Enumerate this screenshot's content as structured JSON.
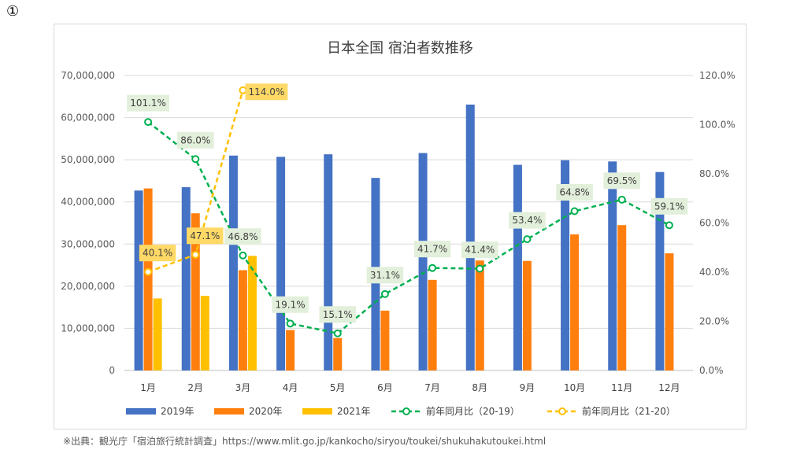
{
  "marker": "①",
  "source_note": "※出典：観光庁「宿泊旅行統計調査」https://www.mlit.go.jp/kankocho/siryou/toukei/shukuhakutoukei.html",
  "chart_data": {
    "type": "bar",
    "title": "日本全国 宿泊者数推移",
    "categories": [
      "1月",
      "2月",
      "3月",
      "4月",
      "5月",
      "6月",
      "7月",
      "8月",
      "9月",
      "10月",
      "11月",
      "12月"
    ],
    "y_left": {
      "ylim": [
        0,
        70000000
      ],
      "ticks": [
        0,
        10000000,
        20000000,
        30000000,
        40000000,
        50000000,
        60000000,
        70000000
      ],
      "tick_labels": [
        "0",
        "10,000,000",
        "20,000,000",
        "30,000,000",
        "40,000,000",
        "50,000,000",
        "60,000,000",
        "70,000,000"
      ]
    },
    "y_right": {
      "ylim": [
        0,
        120
      ],
      "ticks": [
        0,
        20,
        40,
        60,
        80,
        100,
        120
      ],
      "tick_labels": [
        "0.0%",
        "20.0%",
        "40.0%",
        "60.0%",
        "80.0%",
        "100.0%",
        "120.0%"
      ]
    },
    "bar_series": [
      {
        "name": "2019年",
        "color": "#4472c4",
        "values": [
          42700000,
          43500000,
          51000000,
          50700000,
          51300000,
          45700000,
          51600000,
          63100000,
          48800000,
          49900000,
          49600000,
          47100000
        ]
      },
      {
        "name": "2020年",
        "color": "#ff7f0e",
        "values": [
          43200000,
          37300000,
          23800000,
          9600000,
          7700000,
          14200000,
          21500000,
          26100000,
          26000000,
          32300000,
          34500000,
          27800000
        ]
      },
      {
        "name": "2021年",
        "color": "#ffc000",
        "values": [
          17100000,
          17700000,
          27200000,
          null,
          null,
          null,
          null,
          null,
          null,
          null,
          null,
          null
        ]
      }
    ],
    "line_series": [
      {
        "name": "前年同月比（20-19）",
        "color": "#00b050",
        "label_bg": "#e2efda",
        "values": [
          101.1,
          86.0,
          46.8,
          19.1,
          15.1,
          31.1,
          41.7,
          41.4,
          53.4,
          64.8,
          69.5,
          59.1
        ],
        "labels": [
          "101.1%",
          "86.0%",
          "46.8%",
          "19.1%",
          "15.1%",
          "31.1%",
          "41.7%",
          "41.4%",
          "53.4%",
          "64.8%",
          "69.5%",
          "59.1%"
        ]
      },
      {
        "name": "前年同月比（21-20）",
        "color": "#ffc000",
        "label_bg": "#ffd966",
        "values": [
          40.1,
          47.1,
          114.0,
          null,
          null,
          null,
          null,
          null,
          null,
          null,
          null,
          null
        ],
        "labels": [
          "40.1%",
          "47.1%",
          "114.0%"
        ]
      }
    ],
    "legend_position": "bottom",
    "grid": true
  }
}
